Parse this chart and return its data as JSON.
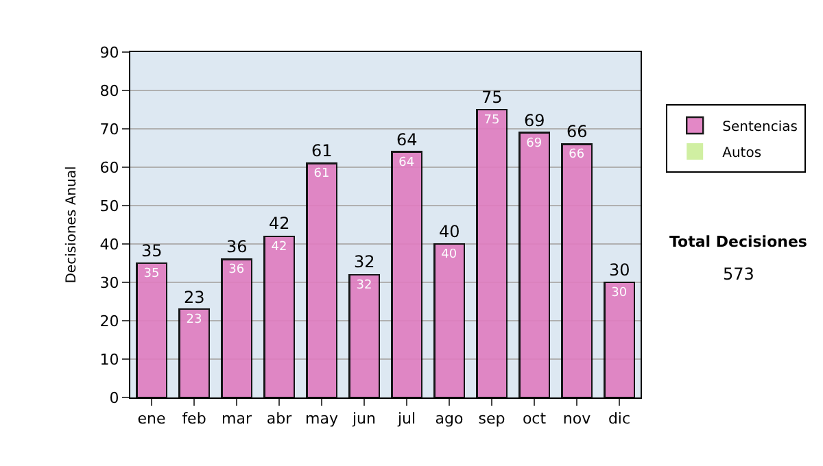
{
  "chart_data": {
    "type": "bar",
    "ylabel": "Decisiones Anual",
    "categories": [
      "ene",
      "feb",
      "mar",
      "abr",
      "may",
      "jun",
      "jul",
      "ago",
      "sep",
      "oct",
      "nov",
      "dic"
    ],
    "stacked": true,
    "series": [
      {
        "name": "Sentencias",
        "color": "#e07cc0",
        "values": [
          35,
          23,
          36,
          42,
          61,
          32,
          64,
          40,
          75,
          69,
          66,
          30
        ],
        "value_labels": [
          "35",
          "23",
          "36",
          "42",
          "61",
          "32",
          "64",
          "40",
          "75",
          "69",
          "66",
          "30"
        ]
      },
      {
        "name": "Autos",
        "color": "#ccee99",
        "values": [
          0,
          0,
          0,
          0,
          0,
          0,
          0,
          0,
          0,
          0,
          0,
          0
        ]
      }
    ],
    "totals": [
      "35",
      "23",
      "36",
      "42",
      "61",
      "32",
      "64",
      "40",
      "75",
      "69",
      "66",
      "30"
    ],
    "ylim": [
      0,
      90
    ],
    "yticks": [
      0,
      10,
      20,
      30,
      40,
      50,
      60,
      70,
      80,
      90
    ],
    "grid": "y",
    "legend": "right",
    "annotations": [
      "Total Decisiones",
      "573"
    ]
  }
}
